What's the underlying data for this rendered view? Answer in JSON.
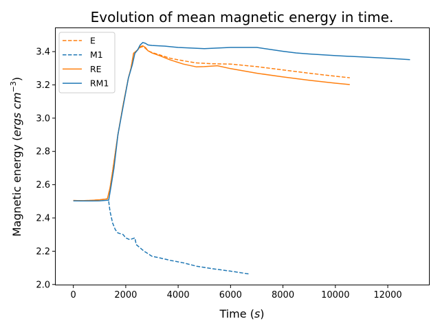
{
  "chart_data": {
    "type": "line",
    "title": "Evolution of mean magnetic energy in time.",
    "xlabel": "Time ",
    "xlabel_unit": "s",
    "ylabel": "Magnetic energy ",
    "ylabel_unit": "ergs cm",
    "ylabel_unit_exp": "−3",
    "xlim": [
      -700,
      13600
    ],
    "ylim": [
      1.995,
      3.545
    ],
    "xticks": [
      0,
      2000,
      4000,
      6000,
      8000,
      10000,
      12000
    ],
    "xtick_labels": [
      "0",
      "2000",
      "4000",
      "6000",
      "8000",
      "10000",
      "12000"
    ],
    "yticks": [
      2.0,
      2.2,
      2.4,
      2.6,
      2.8,
      3.0,
      3.2,
      3.4
    ],
    "ytick_labels": [
      "2.0",
      "2.2",
      "2.4",
      "2.6",
      "2.8",
      "3.0",
      "3.2",
      "3.4"
    ],
    "grid": false,
    "legend_position": "top-left",
    "series": [
      {
        "name": "E",
        "color": "#ff7f0e",
        "dash": true,
        "x": [
          0,
          300,
          700,
          1000,
          1300,
          1400,
          1500,
          1700,
          1900,
          2100,
          2200,
          2300,
          2450,
          2550,
          2650,
          2750,
          2850,
          3000,
          3300,
          3700,
          4200,
          4700,
          5300,
          6000,
          7000,
          8000,
          9000,
          10000,
          10550
        ],
        "y": [
          2.505,
          2.504,
          2.506,
          2.509,
          2.515,
          2.58,
          2.68,
          2.9,
          3.08,
          3.24,
          3.3,
          3.39,
          3.41,
          3.425,
          3.43,
          3.42,
          3.405,
          3.395,
          3.38,
          3.36,
          3.345,
          3.332,
          3.327,
          3.325,
          3.31,
          3.29,
          3.27,
          3.252,
          3.243
        ]
      },
      {
        "name": "M1",
        "color": "#1f77b4",
        "dash": true,
        "x": [
          1350,
          1400,
          1500,
          1600,
          1700,
          1900,
          2000,
          2150,
          2250,
          2350,
          2400,
          2550,
          2700,
          2800,
          3000,
          3300,
          3700,
          4200,
          4700,
          5300,
          6000,
          6500,
          6700
        ],
        "y": [
          2.5,
          2.44,
          2.37,
          2.33,
          2.31,
          2.3,
          2.28,
          2.27,
          2.275,
          2.28,
          2.24,
          2.22,
          2.2,
          2.19,
          2.17,
          2.16,
          2.145,
          2.13,
          2.11,
          2.095,
          2.08,
          2.068,
          2.063
        ]
      },
      {
        "name": "RE",
        "color": "#ff7f0e",
        "dash": false,
        "x": [
          0,
          300,
          700,
          1000,
          1300,
          1400,
          1500,
          1700,
          1900,
          2100,
          2200,
          2300,
          2450,
          2550,
          2650,
          2750,
          2850,
          3000,
          3300,
          3700,
          4200,
          4700,
          5000,
          5500,
          6000,
          7000,
          8000,
          9000,
          10000,
          10550
        ],
        "y": [
          2.505,
          2.504,
          2.506,
          2.509,
          2.515,
          2.58,
          2.68,
          2.9,
          3.08,
          3.24,
          3.3,
          3.39,
          3.41,
          3.43,
          3.435,
          3.425,
          3.405,
          3.392,
          3.375,
          3.35,
          3.325,
          3.308,
          3.31,
          3.315,
          3.298,
          3.27,
          3.248,
          3.228,
          3.21,
          3.202
        ]
      },
      {
        "name": "RM1",
        "color": "#1f77b4",
        "dash": false,
        "x": [
          0,
          300,
          700,
          1000,
          1350,
          1450,
          1550,
          1700,
          1900,
          2100,
          2250,
          2350,
          2450,
          2550,
          2650,
          2750,
          2850,
          3000,
          3500,
          4000,
          5000,
          6000,
          7000,
          8000,
          8500,
          9000,
          10000,
          11000,
          12000,
          12850
        ],
        "y": [
          2.503,
          2.502,
          2.502,
          2.503,
          2.507,
          2.6,
          2.7,
          2.9,
          3.07,
          3.24,
          3.32,
          3.39,
          3.41,
          3.44,
          3.455,
          3.45,
          3.44,
          3.437,
          3.433,
          3.425,
          3.418,
          3.425,
          3.425,
          3.402,
          3.392,
          3.386,
          3.376,
          3.368,
          3.36,
          3.352
        ]
      }
    ]
  }
}
